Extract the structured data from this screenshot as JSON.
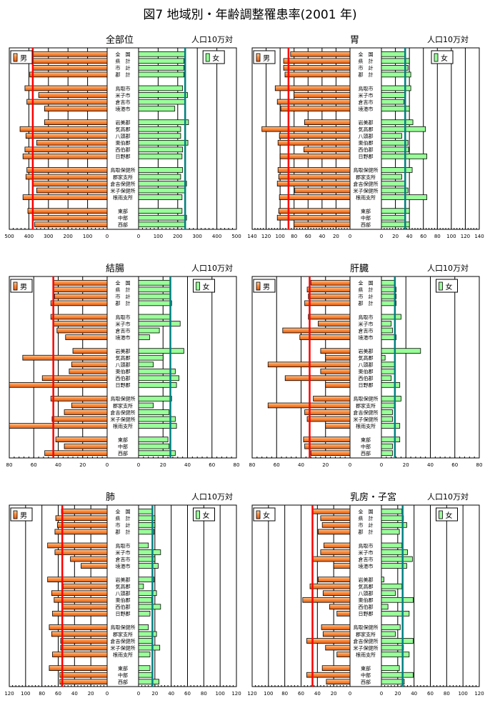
{
  "figure_title": "図7  地域別・年齢調整罹患率(2001 年)",
  "unit_label": "人口10万対",
  "chart_data": [
    {
      "type": "bar",
      "title": "全部位",
      "legend_left": "男",
      "legend_right": "女",
      "xlim": [
        0,
        500
      ],
      "ticks": [
        0,
        100,
        200,
        300,
        400,
        500
      ],
      "categories": [
        "全　国",
        "県　計",
        "市　計",
        "郡　計",
        "鳥取市",
        "米子市",
        "倉吉市",
        "境港市",
        "岩美郡",
        "気高郡",
        "八頭郡",
        "東伯郡",
        "西伯郡",
        "日野郡",
        "鳥取保健所",
        "郡家支所",
        "倉吉保健所",
        "米子保健所",
        "根雨支所",
        "東部",
        "中部",
        "西部"
      ],
      "groups": [
        4,
        4,
        6,
        5,
        3
      ],
      "series": [
        {
          "name": "男",
          "values": [
            380,
            390,
            380,
            395,
            420,
            350,
            410,
            320,
            320,
            445,
            415,
            360,
            420,
            430,
            410,
            415,
            380,
            360,
            430,
            405,
            380,
            370
          ]
        },
        {
          "name": "女",
          "values": [
            235,
            232,
            232,
            232,
            225,
            250,
            235,
            185,
            255,
            215,
            215,
            252,
            225,
            222,
            225,
            215,
            245,
            240,
            222,
            222,
            245,
            235
          ]
        }
      ],
      "reference_lines": {
        "男": 380,
        "女": 238
      }
    },
    {
      "type": "bar",
      "title": "胃",
      "legend_left": "男",
      "legend_right": "女",
      "xlim": [
        0,
        140
      ],
      "ticks": [
        0,
        20,
        40,
        60,
        80,
        100,
        120,
        140
      ],
      "categories": [
        "全　国",
        "県　計",
        "市　計",
        "郡　計",
        "鳥取市",
        "米子市",
        "倉吉市",
        "境港市",
        "岩美郡",
        "気高郡",
        "八頭郡",
        "東伯郡",
        "西伯郡",
        "日野郡",
        "鳥取保健所",
        "郡家支所",
        "倉吉保健所",
        "米子保健所",
        "根雨支所",
        "東部",
        "中部",
        "西部"
      ],
      "groups": [
        4,
        4,
        6,
        5,
        3
      ],
      "series": [
        {
          "name": "男",
          "values": [
            85,
            95,
            95,
            93,
            107,
            80,
            104,
            99,
            65,
            126,
            101,
            103,
            66,
            100,
            103,
            102,
            104,
            79,
            101,
            102,
            104,
            80
          ]
        },
        {
          "name": "女",
          "values": [
            34,
            40,
            38,
            42,
            42,
            34,
            32,
            40,
            45,
            63,
            29,
            38,
            39,
            65,
            44,
            29,
            34,
            38,
            65,
            40,
            34,
            40
          ]
        }
      ],
      "reference_lines": {
        "男": 88,
        "女": 34
      }
    },
    {
      "type": "bar",
      "title": "結腸",
      "legend_left": "男",
      "legend_right": "女",
      "xlim": [
        0,
        80
      ],
      "ticks": [
        0,
        20,
        40,
        60,
        80
      ],
      "categories": [
        "全　国",
        "県　計",
        "市　計",
        "郡　計",
        "鳥取市",
        "米子市",
        "倉吉市",
        "境港市",
        "岩美郡",
        "気高郡",
        "八頭郡",
        "東伯郡",
        "西伯郡",
        "日野郡",
        "鳥取保健所",
        "郡家支所",
        "倉吉保健所",
        "米子保健所",
        "根雨支所",
        "東部",
        "中部",
        "西部"
      ],
      "groups": [
        4,
        4,
        6,
        5,
        3
      ],
      "series": [
        {
          "name": "男",
          "values": [
            44,
            44,
            43,
            46,
            46,
            44,
            41,
            34,
            28,
            69,
            29,
            31,
            53,
            80,
            46,
            29,
            35,
            45,
            80,
            42,
            35,
            51
          ]
        },
        {
          "name": "女",
          "values": [
            26,
            26,
            26,
            27,
            26,
            34,
            17,
            9,
            37,
            20,
            12,
            30,
            33,
            31,
            27,
            12,
            25,
            30,
            31,
            24,
            25,
            30
          ]
        }
      ],
      "reference_lines": {
        "男": 44,
        "女": 26
      }
    },
    {
      "type": "bar",
      "title": "肝臓",
      "legend_left": "男",
      "legend_right": "女",
      "xlim": [
        0,
        80
      ],
      "ticks": [
        0,
        20,
        40,
        60,
        80
      ],
      "categories": [
        "全　国",
        "県　計",
        "市　計",
        "郡　計",
        "鳥取市",
        "米子市",
        "倉吉市",
        "境港市",
        "岩美郡",
        "気高郡",
        "八頭郡",
        "東伯郡",
        "西伯郡",
        "日野郡",
        "鳥取保健所",
        "郡家支所",
        "倉吉保健所",
        "米子保健所",
        "根雨支所",
        "東部",
        "中部",
        "西部"
      ],
      "groups": [
        4,
        4,
        6,
        5,
        3
      ],
      "series": [
        {
          "name": "男",
          "values": [
            32,
            35,
            34,
            37,
            34,
            26,
            55,
            41,
            24,
            20,
            67,
            24,
            53,
            20,
            30,
            67,
            37,
            35,
            20,
            38,
            37,
            32
          ]
        },
        {
          "name": "女",
          "values": [
            11,
            12,
            12,
            12,
            16,
            8,
            9,
            12,
            32,
            3,
            11,
            11,
            8,
            15,
            16,
            11,
            9,
            9,
            15,
            15,
            9,
            9
          ]
        }
      ],
      "reference_lines": {
        "男": 33,
        "女": 11
      }
    },
    {
      "type": "bar",
      "title": "肺",
      "legend_left": "男",
      "legend_right": "女",
      "xlim": [
        0,
        120
      ],
      "ticks": [
        0,
        20,
        40,
        60,
        80,
        100,
        120
      ],
      "categories": [
        "全　国",
        "県　計",
        "市　計",
        "郡　計",
        "鳥取市",
        "米子市",
        "倉吉市",
        "境港市",
        "岩美郡",
        "気高郡",
        "八頭郡",
        "東伯郡",
        "西伯郡",
        "日野郡",
        "鳥取保健所",
        "郡家支所",
        "倉吉保健所",
        "米子保健所",
        "根雨支所",
        "東部",
        "中部",
        "西部"
      ],
      "groups": [
        4,
        4,
        6,
        5,
        3
      ],
      "series": [
        {
          "name": "男",
          "values": [
            56,
            63,
            61,
            64,
            73,
            64,
            45,
            32,
            73,
            54,
            68,
            65,
            55,
            67,
            71,
            68,
            57,
            57,
            67,
            71,
            58,
            58
          ]
        },
        {
          "name": "女",
          "values": [
            17,
            20,
            20,
            19,
            12,
            27,
            20,
            24,
            19,
            6,
            22,
            16,
            27,
            14,
            12,
            22,
            17,
            26,
            14,
            14,
            17,
            25
          ]
        }
      ],
      "reference_lines": {
        "男": 55,
        "女": 17
      }
    },
    {
      "type": "bar",
      "title": "乳房・子宮",
      "legend_left": "女",
      "legend_right": "女",
      "xlim": [
        0,
        120
      ],
      "ticks": [
        0,
        20,
        40,
        60,
        80,
        100,
        120
      ],
      "categories": [
        "全　国",
        "県　計",
        "市　計",
        "郡　計",
        "鳥取市",
        "米子市",
        "倉吉市",
        "境港市",
        "岩美郡",
        "気高郡",
        "八頭郡",
        "東伯郡",
        "西伯郡",
        "日野郡",
        "鳥取保健所",
        "郡家支所",
        "倉吉保健所",
        "米子保健所",
        "根雨支所",
        "東部",
        "中部",
        "西部"
      ],
      "groups": [
        4,
        4,
        6,
        5,
        3
      ],
      "series": [
        {
          "name": "女(左)",
          "values": [
            46,
            36,
            34,
            39,
            32,
            36,
            46,
            20,
            39,
            49,
            33,
            58,
            25,
            16,
            35,
            33,
            53,
            30,
            16,
            34,
            53,
            29
          ]
        },
        {
          "name": "女(右)",
          "values": [
            25,
            27,
            31,
            22,
            25,
            32,
            38,
            31,
            3,
            25,
            17,
            39,
            8,
            34,
            23,
            17,
            39,
            27,
            34,
            22,
            39,
            28
          ]
        }
      ],
      "reference_lines": {
        "左": 46,
        "右": 26
      }
    }
  ]
}
